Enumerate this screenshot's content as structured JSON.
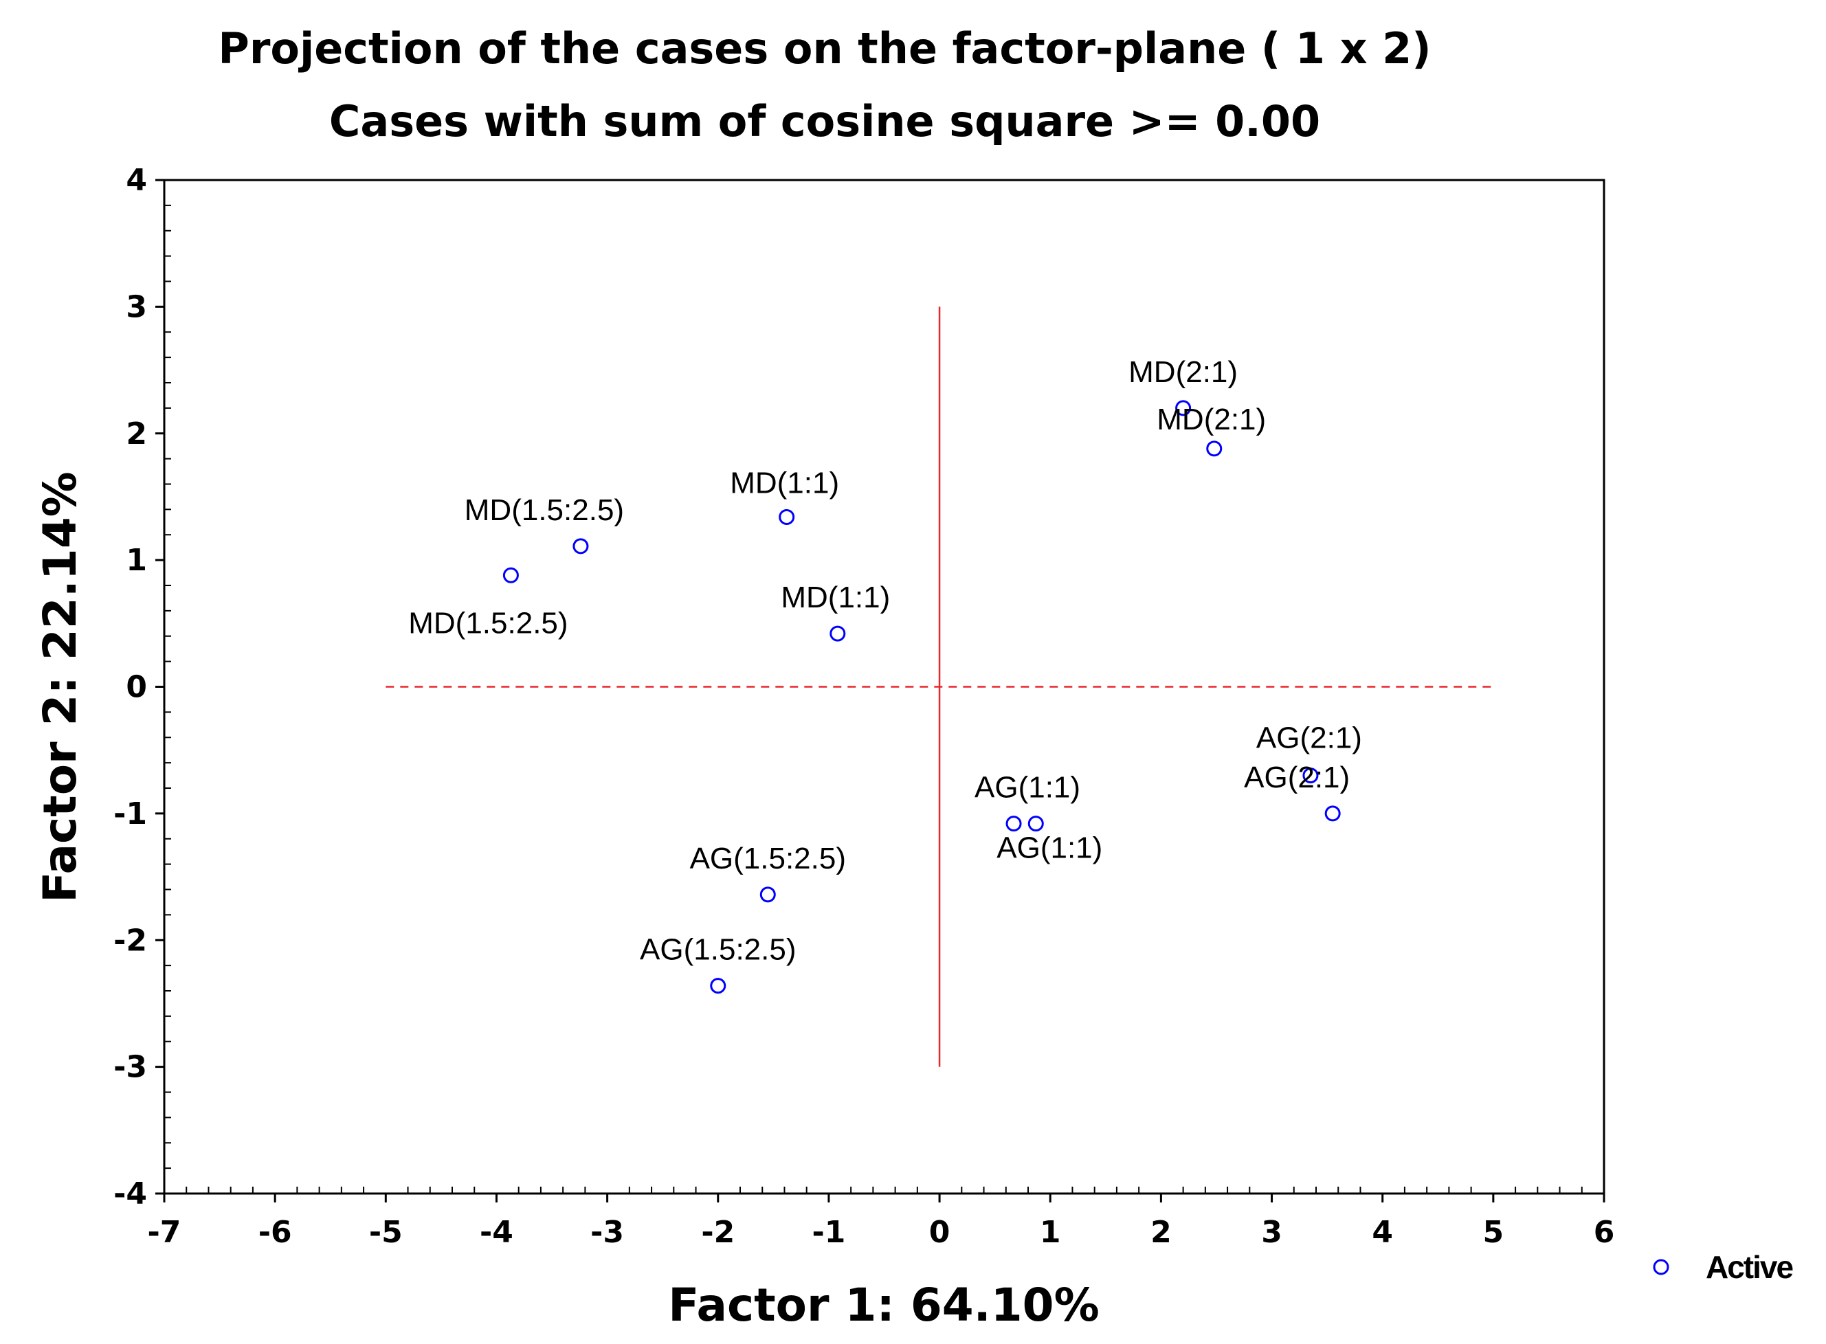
{
  "chart_data": {
    "type": "scatter",
    "title": "Projection of the cases on the factor-plane (  1 x   2)",
    "subtitle": "Cases with sum of cosine square >=  0.00",
    "xlabel": "Factor 1: 64.10%",
    "ylabel": "Factor 2: 22.14%",
    "xlim": [
      -7,
      6
    ],
    "ylim": [
      -4,
      4
    ],
    "xticks": [
      "-7",
      "-6",
      "-5",
      "-4",
      "-3",
      "-2",
      "-1",
      "0",
      "1",
      "2",
      "3",
      "4",
      "5",
      "6"
    ],
    "yticks": [
      "4",
      "3",
      "2",
      "1",
      "0",
      "-1",
      "-2",
      "-3",
      "-4"
    ],
    "grid": false,
    "legend": {
      "placement": "bottom-right",
      "entries": [
        "Active"
      ]
    },
    "series": [
      {
        "name": "Active",
        "points": [
          {
            "label": "MD(2:1)",
            "x": 2.2,
            "y": 2.2
          },
          {
            "label": "MD(2:1)",
            "x": 2.48,
            "y": 1.88
          },
          {
            "label": "MD(1.5:2.5)",
            "x": -3.24,
            "y": 1.11
          },
          {
            "label": "MD(1.5:2.5)",
            "x": -3.87,
            "y": 0.88
          },
          {
            "label": "MD(1:1)",
            "x": -1.38,
            "y": 1.34
          },
          {
            "label": "MD(1:1)",
            "x": -0.92,
            "y": 0.42
          },
          {
            "label": "AG(2:1)",
            "x": 3.35,
            "y": -0.7
          },
          {
            "label": "AG(2:1)",
            "x": 3.55,
            "y": -1.0
          },
          {
            "label": "AG(1:1)",
            "x": 0.67,
            "y": -1.08
          },
          {
            "label": "AG(1:1)",
            "x": 0.87,
            "y": -1.08
          },
          {
            "label": "AG(1.5:2.5)",
            "x": -1.55,
            "y": -1.64
          },
          {
            "label": "AG(1.5:2.5)",
            "x": -2.0,
            "y": -2.36
          }
        ]
      }
    ],
    "reference_lines": {
      "x": 0,
      "y": 0,
      "x_range": [
        -5,
        5
      ],
      "y_range": [
        -3,
        3
      ]
    },
    "colors": {
      "points": "#0000ff",
      "reference": "#e8262b",
      "axes": "#000000"
    }
  }
}
